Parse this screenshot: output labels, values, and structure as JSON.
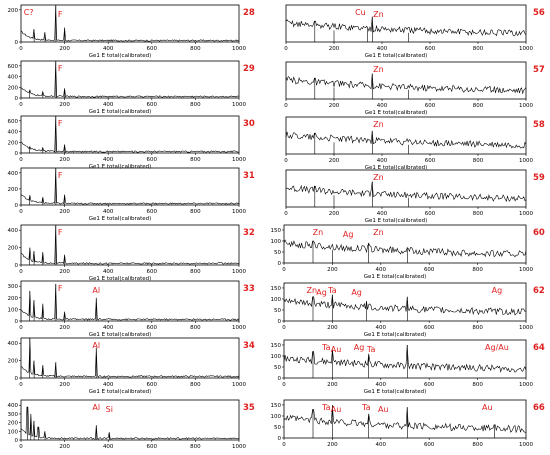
{
  "page": {
    "accent_color": "#e02020",
    "axis_color": "#000000"
  },
  "axis_label": "Ge1 E total(calibrated)",
  "chart_data": [
    {
      "type": "line",
      "id": "28",
      "side": "left",
      "xlim": [
        0,
        1000
      ],
      "x_ticks": [
        0,
        200,
        400,
        600,
        800,
        1000
      ],
      "y_ticks": [
        0,
        200
      ],
      "xlabel": "Ge1 E total(calibrated)",
      "annotations": [
        {
          "text": "C?",
          "x": 35
        },
        {
          "text": "F",
          "x": 180
        }
      ],
      "peaks": [
        [
          60,
          80
        ],
        [
          110,
          60
        ],
        [
          160,
          250
        ],
        [
          200,
          90
        ]
      ]
    },
    {
      "type": "line",
      "id": "29",
      "side": "left",
      "xlim": [
        0,
        1000
      ],
      "x_ticks": [
        0,
        200,
        400,
        600,
        800,
        1000
      ],
      "y_ticks": [
        0,
        200,
        400,
        600
      ],
      "xlabel": "Ge1 E total(calibrated)",
      "annotations": [
        {
          "text": "F",
          "x": 180
        }
      ],
      "peaks": [
        [
          40,
          150
        ],
        [
          100,
          120
        ],
        [
          160,
          700
        ],
        [
          200,
          180
        ]
      ]
    },
    {
      "type": "line",
      "id": "30",
      "side": "left",
      "xlim": [
        0,
        1000
      ],
      "x_ticks": [
        0,
        200,
        400,
        600,
        800,
        1000
      ],
      "y_ticks": [
        0,
        200,
        400,
        600
      ],
      "xlabel": "Ge1 E total(calibrated)",
      "annotations": [
        {
          "text": "F",
          "x": 180
        }
      ],
      "peaks": [
        [
          40,
          120
        ],
        [
          100,
          100
        ],
        [
          160,
          700
        ],
        [
          200,
          160
        ]
      ]
    },
    {
      "type": "line",
      "id": "31",
      "side": "left",
      "xlim": [
        0,
        1000
      ],
      "x_ticks": [
        0,
        200,
        400,
        600,
        800,
        1000
      ],
      "y_ticks": [
        0,
        200,
        400
      ],
      "xlabel": "Ge1 E total(calibrated)",
      "annotations": [
        {
          "text": "F",
          "x": 180
        }
      ],
      "peaks": [
        [
          40,
          120
        ],
        [
          100,
          100
        ],
        [
          160,
          520
        ],
        [
          200,
          130
        ]
      ]
    },
    {
      "type": "line",
      "id": "32",
      "side": "left",
      "xlim": [
        0,
        1000
      ],
      "x_ticks": [
        0,
        200,
        400,
        600,
        800,
        1000
      ],
      "y_ticks": [
        0,
        200,
        400
      ],
      "xlabel": "Ge1 E total(calibrated)",
      "annotations": [
        {
          "text": "F",
          "x": 180
        }
      ],
      "peaks": [
        [
          40,
          200
        ],
        [
          60,
          160
        ],
        [
          100,
          150
        ],
        [
          160,
          520
        ],
        [
          200,
          120
        ]
      ]
    },
    {
      "type": "line",
      "id": "33",
      "side": "left",
      "xlim": [
        0,
        1000
      ],
      "x_ticks": [
        0,
        200,
        400,
        600,
        800,
        1000
      ],
      "y_ticks": [
        0,
        100,
        200,
        300
      ],
      "xlabel": "Ge1 E total(calibrated)",
      "annotations": [
        {
          "text": "F",
          "x": 180
        },
        {
          "text": "Al",
          "x": 345
        }
      ],
      "peaks": [
        [
          40,
          260
        ],
        [
          60,
          180
        ],
        [
          100,
          150
        ],
        [
          160,
          320
        ],
        [
          200,
          80
        ],
        [
          345,
          200
        ]
      ]
    },
    {
      "type": "line",
      "id": "34",
      "side": "left",
      "xlim": [
        0,
        1000
      ],
      "x_ticks": [
        0,
        200,
        400,
        600,
        800,
        1000
      ],
      "y_ticks": [
        0,
        200,
        400
      ],
      "xlabel": "Ge1 E total(calibrated)",
      "annotations": [
        {
          "text": "Al",
          "x": 345
        }
      ],
      "peaks": [
        [
          40,
          520
        ],
        [
          60,
          200
        ],
        [
          100,
          150
        ],
        [
          160,
          180
        ],
        [
          345,
          350
        ]
      ]
    },
    {
      "type": "line",
      "id": "35",
      "side": "left",
      "xlim": [
        0,
        1000
      ],
      "x_ticks": [
        0,
        200,
        400,
        600,
        800,
        1000
      ],
      "y_ticks": [
        0,
        100,
        200,
        300,
        400
      ],
      "xlabel": "Ge1 E total(calibrated)",
      "annotations": [
        {
          "text": "Al",
          "x": 345
        },
        {
          "text": "Si",
          "x": 405
        }
      ],
      "peaks": [
        [
          30,
          380
        ],
        [
          45,
          300
        ],
        [
          60,
          220
        ],
        [
          80,
          150
        ],
        [
          110,
          100
        ],
        [
          345,
          170
        ],
        [
          405,
          90
        ]
      ]
    },
    {
      "type": "line",
      "id": "56",
      "side": "right",
      "xlim": [
        0,
        1000
      ],
      "x_ticks": [
        0,
        200,
        400,
        600,
        800,
        1000
      ],
      "y_ticks": [],
      "xlabel": "Ge1 E total(calibrated)",
      "annotations": [
        {
          "text": "Cu",
          "x": 310
        },
        {
          "text": "Zn",
          "x": 385
        }
      ],
      "peaks": [
        [
          120,
          90
        ],
        [
          200,
          50
        ],
        [
          340,
          60
        ],
        [
          360,
          110
        ],
        [
          510,
          40
        ]
      ]
    },
    {
      "type": "line",
      "id": "57",
      "side": "right",
      "xlim": [
        0,
        1000
      ],
      "x_ticks": [
        0,
        200,
        400,
        600,
        800,
        1000
      ],
      "y_ticks": [],
      "xlabel": "Ge1 E total(calibrated)",
      "annotations": [
        {
          "text": "Zn",
          "x": 385
        }
      ],
      "peaks": [
        [
          120,
          90
        ],
        [
          200,
          50
        ],
        [
          360,
          110
        ],
        [
          510,
          40
        ]
      ]
    },
    {
      "type": "line",
      "id": "58",
      "side": "right",
      "xlim": [
        0,
        1000
      ],
      "x_ticks": [
        0,
        200,
        400,
        600,
        800,
        1000
      ],
      "y_ticks": [],
      "xlabel": "Ge1 E total(calibrated)",
      "annotations": [
        {
          "text": "Zn",
          "x": 385
        }
      ],
      "peaks": [
        [
          120,
          90
        ],
        [
          200,
          50
        ],
        [
          360,
          100
        ],
        [
          510,
          40
        ]
      ]
    },
    {
      "type": "line",
      "id": "59",
      "side": "right",
      "xlim": [
        0,
        1000
      ],
      "x_ticks": [
        0,
        200,
        400,
        600,
        800,
        1000
      ],
      "y_ticks": [],
      "xlabel": "Ge1 E total(calibrated)",
      "annotations": [
        {
          "text": "Zn",
          "x": 385
        }
      ],
      "peaks": [
        [
          120,
          90
        ],
        [
          200,
          50
        ],
        [
          360,
          110
        ],
        [
          510,
          40
        ]
      ]
    },
    {
      "type": "line",
      "id": "60",
      "side": "right",
      "xlim": [
        0,
        1000
      ],
      "x_ticks": [
        0,
        200,
        400,
        600,
        800,
        1000
      ],
      "y_ticks": [
        0,
        50,
        100,
        150
      ],
      "xlabel": "Ge1 E total(calibrated)",
      "annotations": [
        {
          "text": "Zn",
          "x": 140
        },
        {
          "text": "Ag",
          "x": 265
        },
        {
          "text": "Zn",
          "x": 390
        }
      ],
      "peaks": [
        [
          120,
          100
        ],
        [
          200,
          60
        ],
        [
          350,
          90
        ],
        [
          510,
          70
        ]
      ]
    },
    {
      "type": "line",
      "id": "62",
      "side": "right",
      "xlim": [
        0,
        1000
      ],
      "x_ticks": [
        0,
        200,
        400,
        600,
        800,
        1000
      ],
      "y_ticks": [
        0,
        50,
        100,
        150
      ],
      "xlabel": "Ge1 E total(calibrated)",
      "annotations": [
        {
          "text": "Zn",
          "x": 115
        },
        {
          "text": "Ag",
          "x": 155
        },
        {
          "text": "Ta",
          "x": 200
        },
        {
          "text": "Ag",
          "x": 300
        },
        {
          "text": "Ag",
          "x": 880
        }
      ],
      "peaks": [
        [
          120,
          110
        ],
        [
          200,
          120
        ],
        [
          340,
          90
        ],
        [
          510,
          110
        ]
      ]
    },
    {
      "type": "line",
      "id": "64",
      "side": "right",
      "xlim": [
        0,
        1000
      ],
      "x_ticks": [
        0,
        200,
        400,
        600,
        800,
        1000
      ],
      "y_ticks": [
        0,
        50,
        100,
        150
      ],
      "xlabel": "Ge1 E total(calibrated)",
      "annotations": [
        {
          "text": "Ta",
          "x": 175
        },
        {
          "text": "Au",
          "x": 215
        },
        {
          "text": "Ag",
          "x": 310
        },
        {
          "text": "Ta",
          "x": 360
        },
        {
          "text": "Ag/Au",
          "x": 880
        }
      ],
      "peaks": [
        [
          120,
          120
        ],
        [
          200,
          130
        ],
        [
          350,
          110
        ],
        [
          510,
          150
        ]
      ]
    },
    {
      "type": "line",
      "id": "66",
      "side": "right",
      "xlim": [
        0,
        1000
      ],
      "x_ticks": [
        0,
        200,
        400,
        600,
        800,
        1000
      ],
      "y_ticks": [
        0,
        50,
        100,
        150
      ],
      "xlabel": "",
      "annotations": [
        {
          "text": "Ta",
          "x": 175
        },
        {
          "text": "Au",
          "x": 215
        },
        {
          "text": "Ta",
          "x": 340
        },
        {
          "text": "Au",
          "x": 410
        },
        {
          "text": "Au",
          "x": 840
        }
      ],
      "peaks": [
        [
          120,
          130
        ],
        [
          200,
          150
        ],
        [
          350,
          110
        ],
        [
          510,
          140
        ],
        [
          870,
          60
        ]
      ]
    }
  ]
}
